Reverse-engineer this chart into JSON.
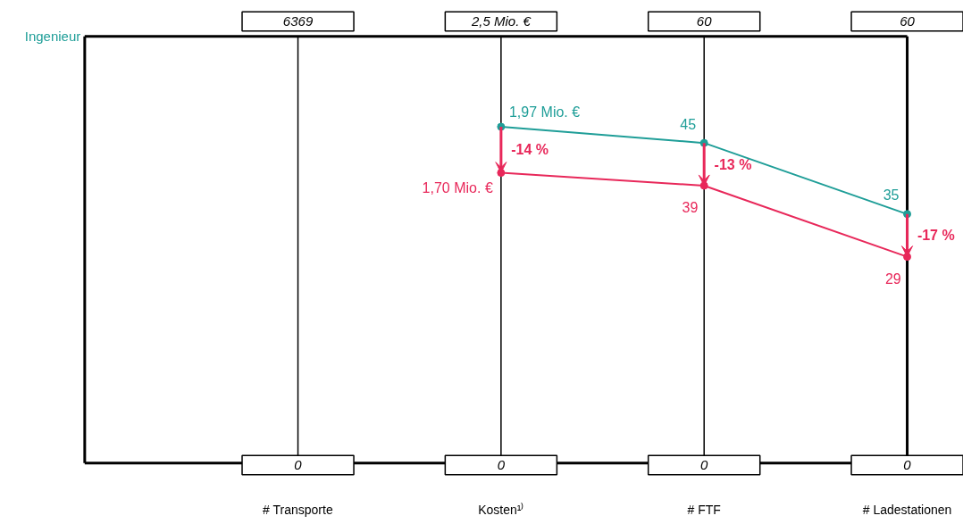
{
  "chart_data": {
    "type": "other",
    "categories": [
      "# Transporte",
      "Kosten¹⁾",
      "# FTF",
      "# Ladestationen"
    ],
    "series": [
      {
        "name": "Ingenieur",
        "color": "#1f9e98",
        "values": [
          null,
          1.97,
          45,
          35
        ],
        "value_labels": [
          null,
          "1,97 Mio. €",
          "45",
          "35"
        ]
      },
      {
        "color": "#e8285a",
        "values": [
          null,
          1.7,
          39,
          29
        ],
        "value_labels": [
          null,
          "1,70 Mio. €",
          "39",
          "29"
        ]
      }
    ],
    "annotations": [
      "6369",
      "2,5 Mio. €",
      "60",
      "60",
      "0",
      "0",
      "0",
      "0",
      "-14 %",
      "-13 %",
      "-17 %"
    ]
  }
}
